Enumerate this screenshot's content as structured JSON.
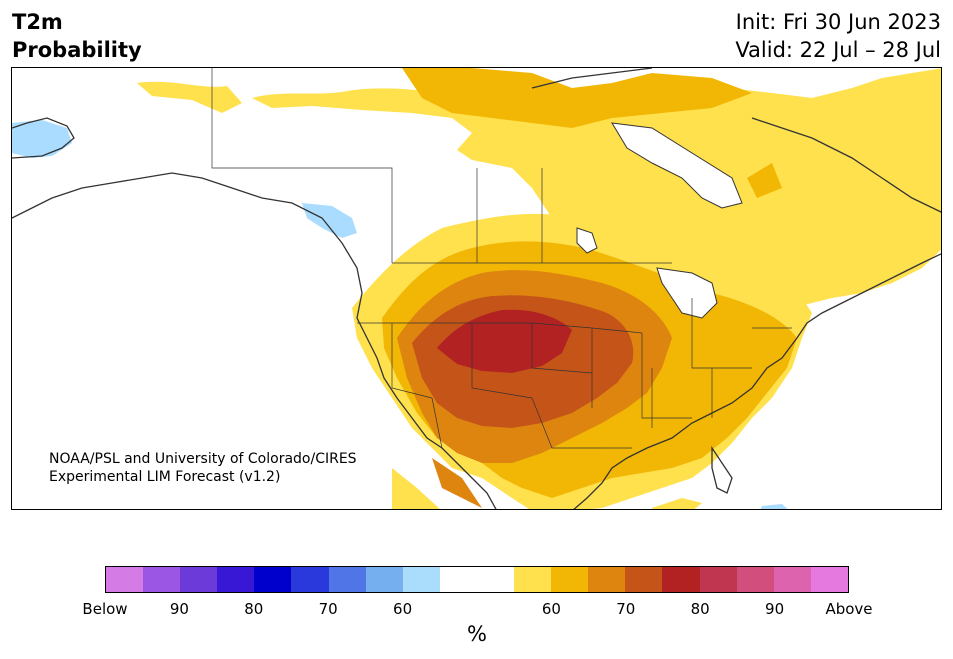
{
  "header": {
    "title_line1": "T2m",
    "title_line2": "Probability",
    "init_label": "Init: Fri 30 Jun 2023",
    "valid_label": "Valid: 22 Jul – 28 Jul"
  },
  "map": {
    "credit_line1": "NOAA/PSL and University of Colorado/CIRES",
    "credit_line2": "Experimental LIM Forecast (v1.2)",
    "region": "North America",
    "colors": {
      "land_neutral": "#ffffff",
      "light_yellow": "#ffe14d",
      "gold": "#f2b705",
      "orange": "#de8510",
      "red_orange": "#c55418",
      "dark_red": "#b22222",
      "light_blue": "#a9dcff",
      "coast": "#333333"
    }
  },
  "colorbar": {
    "colors": [
      "#d57be6",
      "#9b57e3",
      "#6b3ad9",
      "#3818d4",
      "#0000cc",
      "#2a39dc",
      "#5075e7",
      "#76aff0",
      "#aadcfb",
      "#ffffff",
      "#ffffff",
      "#ffe14d",
      "#f2b705",
      "#de8510",
      "#c55418",
      "#b22222",
      "#c0354f",
      "#d24f7d",
      "#dd63ae",
      "#e679df"
    ],
    "ticks": [
      "Below",
      "90",
      "80",
      "70",
      "60",
      "60",
      "70",
      "80",
      "90",
      "Above"
    ],
    "unit": "%"
  }
}
